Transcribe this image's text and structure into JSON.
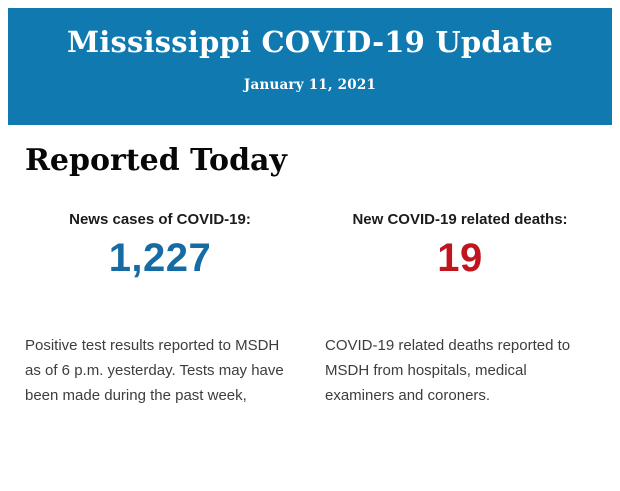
{
  "header": {
    "title": "Mississippi COVID-19 Update",
    "date": "January 11, 2021",
    "colors": {
      "background": "#0f79b0",
      "text": "#ffffff"
    }
  },
  "main": {
    "heading": "Reported Today",
    "stats": [
      {
        "label": "News cases of COVID-19:",
        "value": "1,227",
        "value_color": "#176ba3",
        "description": "Positive test results reported to MSDH as of 6 p.m. yesterday. Tests may have been made during the past week,"
      },
      {
        "label": "New COVID-19 related deaths:",
        "value": "19",
        "value_color": "#c0151e",
        "description": "COVID-19 related deaths reported to MSDH from hospitals, medical examiners and coroners."
      }
    ]
  }
}
